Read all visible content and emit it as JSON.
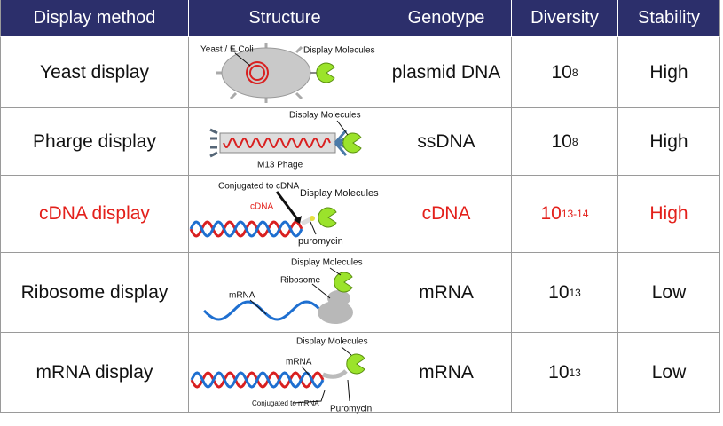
{
  "table": {
    "header": [
      "Display method",
      "Structure",
      "Genotype",
      "Diversity",
      "Stability"
    ],
    "rows": [
      {
        "method": "Yeast display",
        "structure_labels": [
          "Yeast / E.Coli",
          "Display Molecules"
        ],
        "genotype": "plasmid DNA",
        "diversity": {
          "base": "10",
          "exponent": "8"
        },
        "stability": "High"
      },
      {
        "method": "Pharge display",
        "structure_labels": [
          "Display Molecules",
          "M13 Phage"
        ],
        "genotype": "ssDNA",
        "diversity": {
          "base": "10",
          "exponent": "8"
        },
        "stability": "High"
      },
      {
        "method": "cDNA display",
        "structure_labels": [
          "Conjugated to cDNA",
          "cDNA",
          "Display Molecules",
          "puromycin"
        ],
        "genotype": "cDNA",
        "diversity": {
          "base": "10",
          "exponent": "13-14"
        },
        "stability": "High"
      },
      {
        "method": "Ribosome display",
        "structure_labels": [
          "Display Molecules",
          "Ribosome",
          "mRNA"
        ],
        "genotype": "mRNA",
        "diversity": {
          "base": "10",
          "exponent": "13"
        },
        "stability": "Low"
      },
      {
        "method": "mRNA display",
        "structure_labels": [
          "Display Molecules",
          "mRNA",
          "Conjugated to mRNA",
          "Puromycin"
        ],
        "genotype": "mRNA",
        "diversity": {
          "base": "10",
          "exponent": "13"
        },
        "stability": "Low"
      }
    ]
  }
}
